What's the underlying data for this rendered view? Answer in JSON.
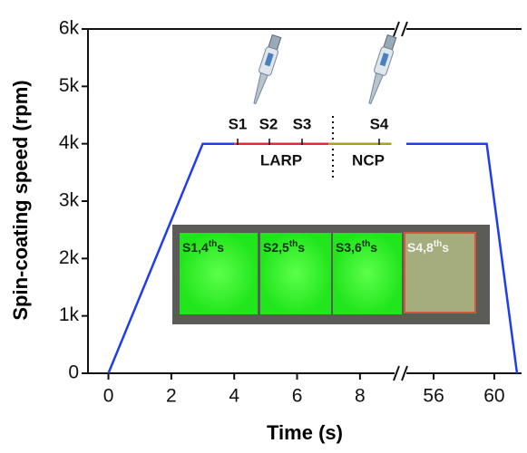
{
  "chart_data": {
    "type": "line",
    "xlabel": "Time (s)",
    "ylabel": "Spin-coating speed (rpm)",
    "xlim": [
      [
        -0.65,
        9.1
      ],
      [
        54.2,
        61.8
      ]
    ],
    "ylim": [
      0,
      6000
    ],
    "xticks": [
      0,
      2,
      4,
      6,
      8,
      56,
      60
    ],
    "yticks": [
      0,
      {
        "value": 1000,
        "label": "1k"
      },
      {
        "value": 2000,
        "label": "2k"
      },
      {
        "value": 3000,
        "label": "3k"
      },
      {
        "value": 4000,
        "label": "4k"
      },
      {
        "value": 5000,
        "label": "5k"
      },
      {
        "value": 6000,
        "label": "6k"
      }
    ],
    "series": [
      {
        "color": "#1f3cf0",
        "x": [
          0,
          3,
          4
        ],
        "values": [
          0,
          4000,
          4000
        ]
      },
      {
        "color": "#e8283a",
        "x": [
          4,
          7
        ],
        "values": [
          4000,
          4000
        ]
      },
      {
        "color": "#a8a020",
        "x": [
          7,
          9
        ],
        "values": [
          4000,
          4000
        ]
      },
      {
        "color": "#1f3cf0",
        "x": [
          54.2,
          59.5,
          61.5
        ],
        "values": [
          4000,
          4000,
          0
        ]
      }
    ],
    "annotations": [
      "S1",
      "S2",
      "S3",
      "S4",
      "LARP",
      "NCP"
    ],
    "photo_labels": [
      [
        "S1,4",
        "th",
        "s"
      ],
      [
        "S2,5",
        "th",
        "s"
      ],
      [
        "S3,6",
        "th",
        "s"
      ],
      [
        "S4,8",
        "th",
        "s"
      ]
    ]
  }
}
